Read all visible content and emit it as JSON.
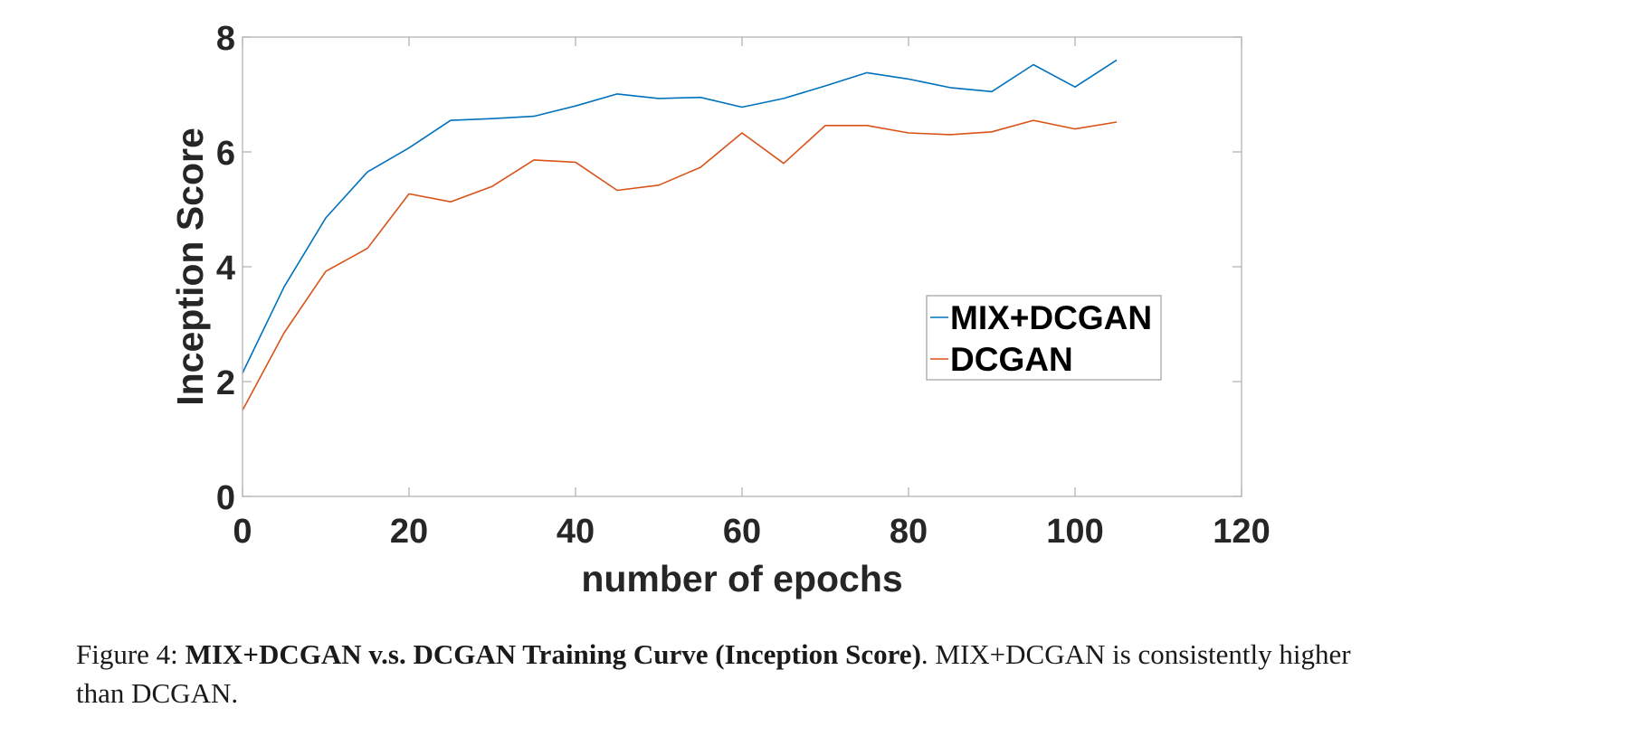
{
  "chart_data": {
    "type": "line",
    "xlabel": "number of epochs",
    "ylabel": "Inception Score",
    "xlim": [
      0,
      120
    ],
    "ylim": [
      0,
      8
    ],
    "xticks": [
      "0",
      "20",
      "40",
      "60",
      "80",
      "100",
      "120"
    ],
    "yticks": [
      "0",
      "2",
      "4",
      "6",
      "8"
    ],
    "grid": false,
    "legend_position": "center-right",
    "x": [
      0,
      5,
      10,
      15,
      20,
      25,
      30,
      35,
      40,
      45,
      50,
      55,
      60,
      65,
      70,
      75,
      80,
      85,
      90,
      95,
      100,
      105
    ],
    "series": [
      {
        "name": "MIX+DCGAN",
        "color": "#0072bd",
        "values": [
          2.15,
          3.65,
          4.85,
          5.65,
          6.07,
          6.55,
          6.58,
          6.62,
          6.8,
          7.01,
          6.93,
          6.95,
          6.78,
          6.93,
          7.15,
          7.38,
          7.27,
          7.12,
          7.05,
          7.52,
          7.13,
          7.6
        ]
      },
      {
        "name": "DCGAN",
        "color": "#d95319",
        "values": [
          1.5,
          2.85,
          3.92,
          4.32,
          5.27,
          5.13,
          5.4,
          5.86,
          5.82,
          5.33,
          5.42,
          5.73,
          6.33,
          5.8,
          6.46,
          6.46,
          6.33,
          6.3,
          6.35,
          6.55,
          6.4,
          6.52
        ]
      }
    ]
  },
  "caption": {
    "prefix": "Figure 4:",
    "title": "MIX+DCGAN v.s. DCGAN Training Curve (Inception Score)",
    "sep": ". ",
    "text": "MIX+DCGAN is consistently higher than DCGAN."
  }
}
